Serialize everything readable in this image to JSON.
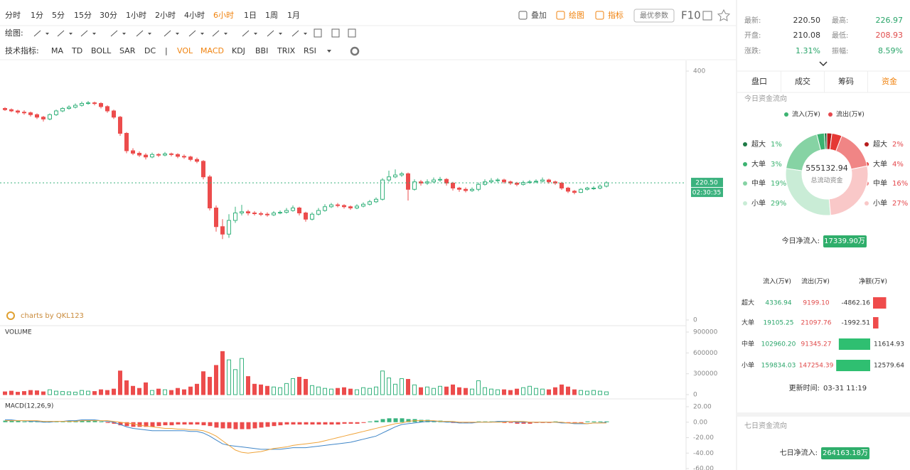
{
  "toolbar": {
    "periods": [
      "分时",
      "1分",
      "5分",
      "15分",
      "30分",
      "1小时",
      "2小时",
      "4小时",
      "6小时",
      "1日",
      "1周",
      "1月"
    ],
    "active_period": 8,
    "actions": [
      "叠加",
      "绘图",
      "指标"
    ],
    "best_params": "最优参数",
    "f10": "F10"
  },
  "drawing_label": "绘图:",
  "indicators": {
    "label": "技术指标:",
    "items": [
      "MA",
      "TD",
      "BOLL",
      "SAR",
      "DC",
      "VOL",
      "MACD",
      "KDJ",
      "BBI",
      "TRIX",
      "RSI"
    ],
    "separator": "|",
    "active": [
      5,
      6
    ]
  },
  "chart_data": [
    {
      "type": "candlestick",
      "watermark": "charts by QKL123",
      "ylim": [
        0,
        400
      ],
      "yticks": [
        0,
        400
      ],
      "up_color": "#37b37e",
      "down_color": "#ec4c4c",
      "last_price": {
        "value": 220.5,
        "label": "220.50"
      },
      "countdown": "02:30:35",
      "candles": [
        [
          340,
          342,
          336,
          338
        ],
        [
          338,
          340,
          334,
          336
        ],
        [
          336,
          338,
          331,
          334
        ],
        [
          334,
          337,
          330,
          333
        ],
        [
          333,
          335,
          327,
          330
        ],
        [
          330,
          332,
          323,
          326
        ],
        [
          326,
          328,
          319,
          323
        ],
        [
          323,
          332,
          321,
          330
        ],
        [
          330,
          338,
          328,
          336
        ],
        [
          336,
          342,
          334,
          340
        ],
        [
          340,
          345,
          338,
          342
        ],
        [
          342,
          348,
          340,
          345
        ],
        [
          345,
          351,
          343,
          348
        ],
        [
          348,
          352,
          346,
          349
        ],
        [
          349,
          351,
          345,
          348
        ],
        [
          348,
          350,
          340,
          343
        ],
        [
          343,
          345,
          333,
          336
        ],
        [
          336,
          338,
          323,
          326
        ],
        [
          326,
          328,
          296,
          300
        ],
        [
          300,
          302,
          268,
          272
        ],
        [
          272,
          276,
          265,
          268
        ],
        [
          268,
          271,
          262,
          265
        ],
        [
          265,
          268,
          258,
          262
        ],
        [
          262,
          269,
          260,
          266
        ],
        [
          266,
          268,
          262,
          265
        ],
        [
          265,
          270,
          263,
          267
        ],
        [
          267,
          269,
          263,
          266
        ],
        [
          266,
          268,
          260,
          263
        ],
        [
          263,
          266,
          259,
          262
        ],
        [
          262,
          264,
          255,
          258
        ],
        [
          258,
          261,
          252,
          255
        ],
        [
          255,
          257,
          226,
          230
        ],
        [
          230,
          233,
          176,
          180
        ],
        [
          180,
          184,
          142,
          150
        ],
        [
          150,
          162,
          130,
          138
        ],
        [
          138,
          170,
          132,
          160
        ],
        [
          160,
          182,
          156,
          172
        ],
        [
          172,
          185,
          168,
          174
        ],
        [
          174,
          177,
          168,
          172
        ],
        [
          172,
          175,
          168,
          171
        ],
        [
          171,
          174,
          167,
          170
        ],
        [
          170,
          173,
          166,
          169
        ],
        [
          169,
          175,
          167,
          172
        ],
        [
          172,
          176,
          170,
          173
        ],
        [
          173,
          180,
          171,
          176
        ],
        [
          176,
          184,
          174,
          180
        ],
        [
          180,
          182,
          168,
          172
        ],
        [
          172,
          174,
          158,
          162
        ],
        [
          162,
          173,
          160,
          170
        ],
        [
          170,
          180,
          168,
          176
        ],
        [
          176,
          186,
          174,
          182
        ],
        [
          182,
          188,
          180,
          185
        ],
        [
          185,
          188,
          181,
          184
        ],
        [
          184,
          186,
          179,
          182
        ],
        [
          182,
          184,
          177,
          180
        ],
        [
          180,
          186,
          178,
          183
        ],
        [
          183,
          189,
          181,
          186
        ],
        [
          186,
          193,
          184,
          190
        ],
        [
          190,
          197,
          188,
          194
        ],
        [
          194,
          228,
          192,
          225
        ],
        [
          225,
          240,
          222,
          230
        ],
        [
          230,
          242,
          228,
          233
        ],
        [
          233,
          238,
          230,
          235
        ],
        [
          235,
          237,
          192,
          210
        ],
        [
          210,
          226,
          208,
          222
        ],
        [
          222,
          225,
          216,
          220
        ],
        [
          220,
          226,
          217,
          222
        ],
        [
          222,
          229,
          220,
          225
        ],
        [
          225,
          230,
          222,
          226
        ],
        [
          226,
          228,
          216,
          220
        ],
        [
          220,
          222,
          208,
          212
        ],
        [
          212,
          214,
          206,
          210
        ],
        [
          210,
          213,
          205,
          208
        ],
        [
          208,
          213,
          206,
          210
        ],
        [
          210,
          221,
          207,
          218
        ],
        [
          218,
          226,
          216,
          222
        ],
        [
          222,
          228,
          220,
          224
        ],
        [
          224,
          228,
          221,
          225
        ],
        [
          225,
          227,
          219,
          222
        ],
        [
          222,
          224,
          217,
          220
        ],
        [
          220,
          222,
          215,
          218
        ],
        [
          218,
          224,
          216,
          221
        ],
        [
          221,
          225,
          219,
          222
        ],
        [
          222,
          226,
          220,
          223
        ],
        [
          223,
          229,
          221,
          225
        ],
        [
          225,
          227,
          219,
          222
        ],
        [
          222,
          224,
          217,
          220
        ],
        [
          220,
          222,
          209,
          212
        ],
        [
          212,
          214,
          204,
          207
        ],
        [
          207,
          209,
          202,
          205
        ],
        [
          205,
          212,
          204,
          210
        ],
        [
          210,
          214,
          208,
          212
        ],
        [
          212,
          215,
          209,
          212
        ],
        [
          212,
          218,
          210,
          215
        ],
        [
          215,
          223,
          213,
          220.5
        ]
      ]
    },
    {
      "type": "bar",
      "title": "VOLUME",
      "ylim": [
        0,
        900000
      ],
      "yticks": [
        0,
        300000,
        600000,
        900000
      ],
      "values": [
        40000,
        50000,
        35000,
        45000,
        60000,
        55000,
        40000,
        70000,
        50000,
        45000,
        40000,
        35000,
        60000,
        50000,
        45000,
        70000,
        60000,
        80000,
        340000,
        200000,
        120000,
        90000,
        170000,
        60000,
        80000,
        70000,
        60000,
        90000,
        70000,
        110000,
        150000,
        330000,
        250000,
        420000,
        620000,
        500000,
        360000,
        520000,
        260000,
        150000,
        140000,
        120000,
        110000,
        100000,
        160000,
        230000,
        250000,
        220000,
        130000,
        110000,
        90000,
        80000,
        90000,
        100000,
        80000,
        70000,
        100000,
        90000,
        110000,
        340000,
        240000,
        150000,
        230000,
        220000,
        140000,
        100000,
        110000,
        90000,
        120000,
        110000,
        140000,
        100000,
        90000,
        80000,
        200000,
        100000,
        80000,
        70000,
        70000,
        60000,
        80000,
        100000,
        120000,
        90000,
        80000,
        70000,
        100000,
        140000,
        110000,
        70000,
        60000,
        50000,
        60000,
        50000,
        40000
      ]
    },
    {
      "type": "macd",
      "title": "MACD(12,26,9)",
      "ylim": [
        -60,
        20
      ],
      "yticks": [
        {
          "value": 20,
          "label": "20.00"
        },
        {
          "value": 0,
          "label": "0.00"
        },
        {
          "value": -20,
          "label": "-20.00"
        },
        {
          "value": -40,
          "label": "-40.00"
        },
        {
          "value": -60,
          "label": "-60.00"
        }
      ],
      "up_color": "#37b37e",
      "down_color": "#ec4c4c",
      "histogram": [
        2,
        2,
        2,
        1,
        1,
        1,
        1,
        1,
        1,
        1,
        2,
        2,
        2,
        2,
        2,
        1,
        -1,
        -2,
        -4,
        -5,
        -6,
        -6,
        -6,
        -6,
        -5,
        -4,
        -4,
        -3,
        -3,
        -3,
        -3,
        -4,
        -5,
        -7,
        -8,
        -8,
        -9,
        -9,
        -9,
        -8,
        -7,
        -6,
        -5,
        -4,
        -3,
        -3,
        -3,
        -3,
        -3,
        -3,
        -3,
        -3,
        -3,
        -2,
        -2,
        -2,
        -1,
        1,
        2,
        4,
        5,
        5,
        5,
        4,
        4,
        3,
        3,
        2,
        2,
        1,
        -1,
        -1,
        -1,
        -1,
        1,
        1,
        1,
        1,
        -1,
        -1,
        -2,
        -2,
        -2,
        -1,
        -1,
        -1,
        1,
        -1,
        -1,
        -1,
        -1,
        1,
        1,
        1,
        1
      ],
      "lines": [
        {
          "color": "#3f86c8",
          "values": [
            3,
            3,
            2,
            2,
            1,
            1,
            0,
            0,
            1,
            1,
            2,
            2,
            3,
            3,
            3,
            2,
            1,
            0,
            -3,
            -6,
            -8,
            -9,
            -10,
            -11,
            -11,
            -11,
            -11,
            -11,
            -11,
            -12,
            -12,
            -14,
            -18,
            -23,
            -28,
            -30,
            -31,
            -32,
            -33,
            -34,
            -35,
            -35,
            -35,
            -35,
            -34,
            -33,
            -33,
            -33,
            -32,
            -31,
            -30,
            -29,
            -28,
            -27,
            -26,
            -24,
            -22,
            -20,
            -18,
            -14,
            -10,
            -6,
            -3,
            -2,
            -1,
            0,
            1,
            1,
            1,
            0,
            0,
            -1,
            -1,
            -1,
            0,
            0,
            0,
            1,
            1,
            1,
            0,
            0,
            0,
            0,
            0,
            0,
            0,
            -1,
            -1,
            -2,
            -2,
            -2,
            -1,
            -1,
            0
          ]
        },
        {
          "color": "#f0a43a",
          "values": [
            2,
            2,
            2,
            2,
            2,
            2,
            1,
            1,
            1,
            1,
            1,
            1,
            2,
            2,
            2,
            2,
            2,
            1,
            0,
            -1,
            -2,
            -4,
            -5,
            -6,
            -7,
            -8,
            -8,
            -9,
            -9,
            -10,
            -10,
            -11,
            -14,
            -18,
            -24,
            -30,
            -36,
            -39,
            -40,
            -39,
            -38,
            -36,
            -34,
            -33,
            -32,
            -30,
            -29,
            -28,
            -27,
            -26,
            -24,
            -22,
            -20,
            -18,
            -16,
            -14,
            -12,
            -10,
            -8,
            -6,
            -4,
            -2,
            -1,
            1,
            2,
            2,
            2,
            2,
            1,
            1,
            1,
            0,
            0,
            0,
            0,
            0,
            0,
            0,
            0,
            1,
            1,
            1,
            0,
            0,
            0,
            0,
            0,
            0,
            -1,
            -1,
            -1,
            -2,
            -1,
            -1,
            -1
          ]
        }
      ]
    },
    {
      "type": "donut",
      "center_value": "555132.94",
      "center_label": "总流动资金",
      "series": [
        {
          "name": "流入(万¥)",
          "color": "#3cb371",
          "categories": [
            "超大",
            "大单",
            "中单",
            "小单"
          ],
          "values": [
            1,
            3,
            19,
            29
          ],
          "value_labels": [
            "1%",
            "3%",
            "19%",
            "29%"
          ],
          "colors": [
            "#1e7a46",
            "#3cb371",
            "#86d3a4",
            "#c9ecd6"
          ]
        },
        {
          "name": "流出(万¥)",
          "color": "#e5484d",
          "categories": [
            "超大",
            "大单",
            "中单",
            "小单"
          ],
          "values": [
            2,
            4,
            16,
            27
          ],
          "value_labels": [
            "2%",
            "4%",
            "16%",
            "27%"
          ],
          "colors": [
            "#b71c1c",
            "#e53935",
            "#f08585",
            "#f9c8c8"
          ]
        }
      ]
    }
  ],
  "quote": {
    "rows": [
      [
        "最新:",
        "220.50",
        "最高:",
        "226.97"
      ],
      [
        "开盘:",
        "210.08",
        "最低:",
        "208.93"
      ],
      [
        "涨跌:",
        "1.31%",
        "振幅:",
        "8.59%"
      ]
    ]
  },
  "tabs": {
    "items": [
      "盘口",
      "成交",
      "筹码",
      "资金"
    ],
    "active": 3
  },
  "fund_title": "今日资金流向",
  "net_inflow": {
    "label": "今日净流入:",
    "value": "17339.90万"
  },
  "table": {
    "header": [
      "流入(万¥)",
      "流出(万¥)",
      "净额(万¥)"
    ],
    "rows": [
      [
        "超大",
        "4336.94",
        "9199.10",
        "-4862.16"
      ],
      [
        "大单",
        "19105.25",
        "21097.76",
        "-1992.51"
      ],
      [
        "中单",
        "102960.20",
        "91345.27",
        "11614.93"
      ],
      [
        "小单",
        "159834.03",
        "147254.39",
        "12579.64"
      ]
    ]
  },
  "update_time": {
    "label": "更新时间:",
    "value": "03-31 11:19"
  },
  "week": {
    "title": "七日资金流向",
    "label": "七日净流入:",
    "value": "264163.18万"
  }
}
